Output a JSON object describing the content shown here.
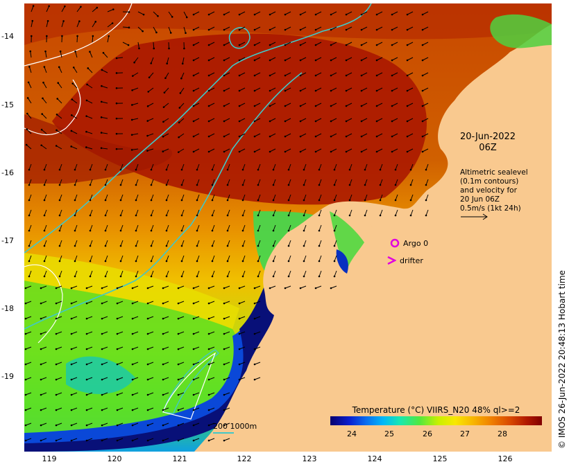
{
  "map": {
    "y_ticks": [
      "-14",
      "-15",
      "-16",
      "-17",
      "-18",
      "-19"
    ],
    "x_ticks": [
      "119",
      "120",
      "121",
      "122",
      "123",
      "124",
      "125",
      "126"
    ],
    "date_label": "20-Jun-2022",
    "time_label": "06Z",
    "altimetry_lines": [
      "Altimetric sealevel",
      "(0.1m contours)",
      "and velocity for",
      "20 Jun 06Z",
      "0.5m/s (1kt 24h)"
    ],
    "argo_label": "Argo 0",
    "drifter_label": "drifter",
    "scale_label": "200  1000m",
    "colorbar_title": "Temperature (°C) VIIRS_N20 48% ql>=2",
    "colorbar_ticks": [
      "24",
      "25",
      "26",
      "27",
      "28"
    ],
    "credit": "© IMOS 26-Jun-2022 20:48:13 Hobart time",
    "colors": {
      "land": "#f9c98f",
      "warm": "#c03a00",
      "hot": "#a01000",
      "cool_yellow": "#f0d000",
      "green": "#58e020",
      "blue": "#0a40d0",
      "navy": "#081080",
      "isobath": "#40c8c8",
      "argo_marker": "#e000e0"
    },
    "icons": {
      "argo_marker": "circle-icon",
      "drifter_marker": "chevron-right-icon",
      "velocity_arrow": "arrow-icon"
    }
  }
}
